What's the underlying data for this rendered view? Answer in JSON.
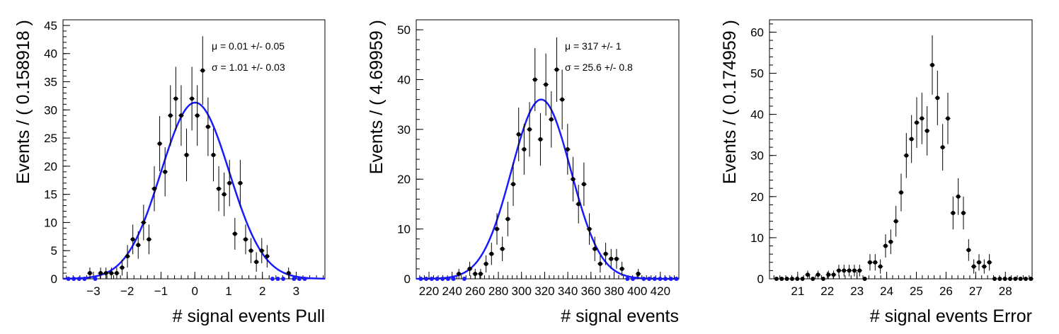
{
  "chart_data": [
    {
      "type": "scatter",
      "xlabel": "# signal events Pull",
      "ylabel": "Events / ( 0.158918 )",
      "xlim": [
        -3.9,
        3.85
      ],
      "ylim": [
        0,
        46
      ],
      "xticks": [
        -3,
        -2,
        -1,
        0,
        1,
        2,
        3
      ],
      "yticks": [
        0,
        5,
        10,
        15,
        20,
        25,
        30,
        35,
        40,
        45
      ],
      "bin_width": 0.158918,
      "x0": -3.82,
      "counts": [
        0,
        0,
        0,
        0,
        1,
        0,
        1,
        1,
        1,
        1,
        2,
        4,
        7,
        6,
        10,
        7,
        16,
        24,
        19,
        29,
        32,
        29,
        22,
        32,
        29,
        37,
        27,
        22,
        16,
        15,
        17,
        8,
        17,
        7,
        5,
        3,
        5,
        4,
        0,
        0,
        0,
        1,
        0,
        0,
        0
      ],
      "stats": [
        {
          "label": "μ =  0.01 +/- 0.05"
        },
        {
          "label": "σ =  1.01 +/- 0.03"
        }
      ],
      "fit": {
        "type": "gaussian",
        "mean": 0.01,
        "sigma": 1.01,
        "amplitude": 31.3,
        "color": "#1a1aff"
      },
      "marker_color": "#000000",
      "grid": false
    },
    {
      "type": "scatter",
      "xlabel": "# signal events",
      "ylabel": "Events / ( 4.69959 )",
      "xlim": [
        209,
        436
      ],
      "ylim": [
        0,
        52
      ],
      "xticks": [
        220,
        240,
        260,
        280,
        300,
        320,
        340,
        360,
        380,
        400,
        420
      ],
      "yticks": [
        0,
        10,
        20,
        30,
        40,
        50
      ],
      "bin_width": 4.69959,
      "x0": 210.6,
      "counts": [
        0,
        0,
        0,
        0,
        0,
        0,
        0,
        1,
        0,
        2,
        1,
        1,
        3,
        5,
        10,
        6,
        12,
        19,
        29,
        26,
        30,
        40,
        28,
        39,
        32,
        42,
        36,
        26,
        20,
        15,
        19,
        10,
        6,
        3,
        5,
        4,
        4,
        2,
        0,
        0,
        1,
        0,
        0,
        0,
        0,
        0,
        0,
        0
      ],
      "stats": [
        {
          "label": "μ =  317 +/- 1"
        },
        {
          "label": "σ =  25.6 +/- 0.8"
        }
      ],
      "fit": {
        "type": "gaussian",
        "mean": 317,
        "sigma": 25.6,
        "amplitude": 36,
        "color": "#1a1aff"
      },
      "marker_color": "#000000",
      "grid": false
    },
    {
      "type": "scatter",
      "xlabel": "# signal events Error",
      "ylabel": "Events / ( 0.174959 )",
      "xlim": [
        20.05,
        28.9
      ],
      "ylim": [
        0,
        63
      ],
      "xticks": [
        21,
        22,
        23,
        24,
        25,
        26,
        27,
        28
      ],
      "yticks": [
        0,
        10,
        20,
        30,
        40,
        50,
        60
      ],
      "bin_width": 0.174959,
      "x0": 20.2,
      "counts": [
        0,
        0,
        0,
        0,
        0,
        0,
        1,
        0,
        1,
        0,
        1,
        1,
        2,
        2,
        2,
        2,
        2,
        0,
        4,
        4,
        3,
        8,
        9,
        14,
        21,
        30,
        34,
        38,
        39,
        36,
        52,
        44,
        32,
        39,
        16,
        20,
        16,
        7,
        3,
        4,
        3,
        4,
        0,
        0,
        0,
        0,
        0,
        0,
        0,
        0
      ],
      "marker_color": "#000000",
      "grid": false
    }
  ]
}
